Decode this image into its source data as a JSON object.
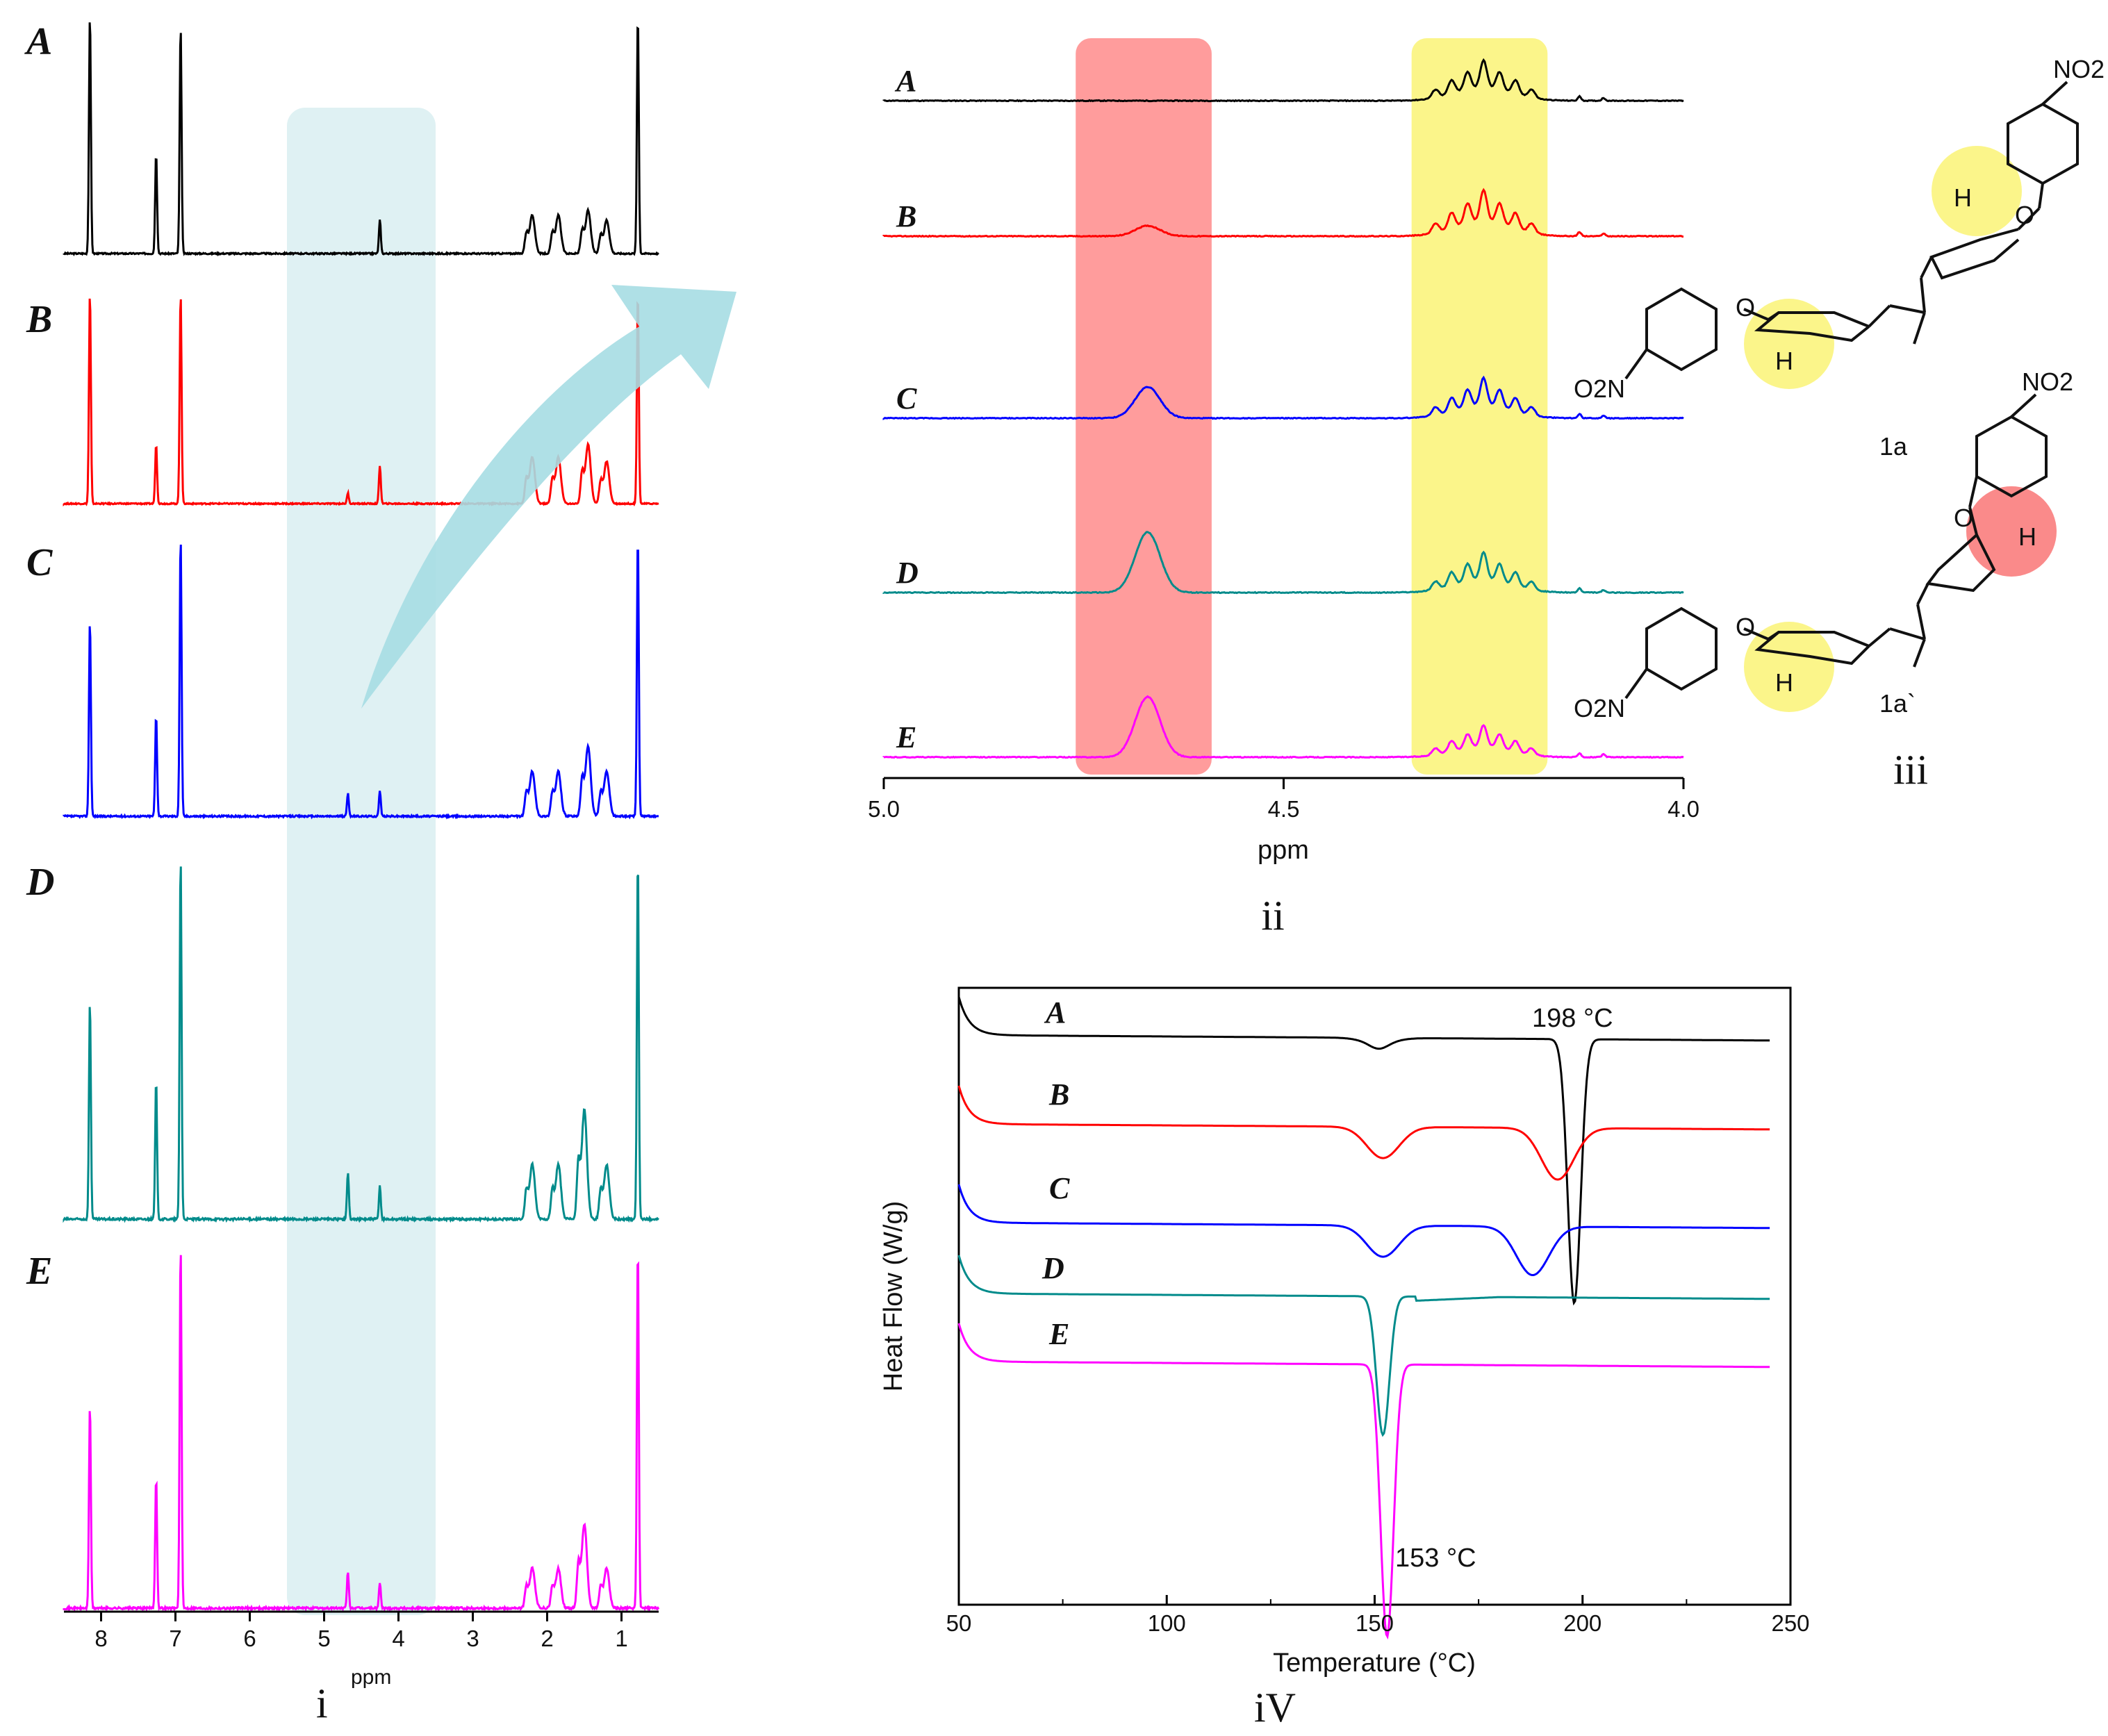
{
  "panels": {
    "i": {
      "label": "i"
    },
    "ii": {
      "label": "ii"
    },
    "iii": {
      "label": "iii"
    },
    "iv": {
      "label": "iV"
    }
  },
  "colors": {
    "A": "#000000",
    "B": "#ff0000",
    "C": "#0000ff",
    "D": "#008b8b",
    "E": "#ff00ff",
    "highlight_cyan": "#dff1f3",
    "highlight_red": "#ff9c9c",
    "highlight_yellow": "#fbf58a",
    "arrow": "#a6dde3"
  },
  "chart_data": [
    {
      "id": "i",
      "type": "line",
      "xlabel": "ppm",
      "xlim": [
        8.5,
        0.5
      ],
      "x_ticks": [
        8,
        7,
        6,
        5,
        4,
        3,
        2,
        1
      ],
      "highlight_region": [
        5.5,
        3.5
      ],
      "series": [
        {
          "name": "A",
          "peaks": [
            {
              "x": 8.15,
              "h": 1.0
            },
            {
              "x": 7.26,
              "h": 0.42
            },
            {
              "x": 6.93,
              "h": 0.95
            },
            {
              "x": 4.25,
              "h": 0.14
            },
            {
              "x": 2.2,
              "h": 0.16
            },
            {
              "x": 1.85,
              "h": 0.16
            },
            {
              "x": 1.45,
              "h": 0.18
            },
            {
              "x": 1.2,
              "h": 0.14
            },
            {
              "x": 0.78,
              "h": 1.0
            }
          ]
        },
        {
          "name": "B",
          "peaks": [
            {
              "x": 8.15,
              "h": 1.0
            },
            {
              "x": 7.26,
              "h": 0.28
            },
            {
              "x": 6.93,
              "h": 1.0
            },
            {
              "x": 4.68,
              "h": 0.05
            },
            {
              "x": 4.25,
              "h": 0.18
            },
            {
              "x": 2.2,
              "h": 0.22
            },
            {
              "x": 1.85,
              "h": 0.22
            },
            {
              "x": 1.45,
              "h": 0.28
            },
            {
              "x": 1.2,
              "h": 0.2
            },
            {
              "x": 0.78,
              "h": 1.0
            }
          ]
        },
        {
          "name": "C",
          "peaks": [
            {
              "x": 8.15,
              "h": 0.7
            },
            {
              "x": 7.26,
              "h": 0.36
            },
            {
              "x": 6.93,
              "h": 1.0
            },
            {
              "x": 4.68,
              "h": 0.08
            },
            {
              "x": 4.25,
              "h": 0.09
            },
            {
              "x": 2.2,
              "h": 0.16
            },
            {
              "x": 1.85,
              "h": 0.16
            },
            {
              "x": 1.45,
              "h": 0.25
            },
            {
              "x": 1.2,
              "h": 0.16
            },
            {
              "x": 0.78,
              "h": 1.0
            }
          ]
        },
        {
          "name": "D",
          "peaks": [
            {
              "x": 8.15,
              "h": 0.6
            },
            {
              "x": 7.26,
              "h": 0.38
            },
            {
              "x": 6.93,
              "h": 1.0
            },
            {
              "x": 4.68,
              "h": 0.13
            },
            {
              "x": 4.25,
              "h": 0.09
            },
            {
              "x": 2.2,
              "h": 0.15
            },
            {
              "x": 1.85,
              "h": 0.15
            },
            {
              "x": 1.5,
              "h": 0.3
            },
            {
              "x": 1.2,
              "h": 0.15
            },
            {
              "x": 0.78,
              "h": 1.0
            }
          ]
        },
        {
          "name": "E",
          "peaks": [
            {
              "x": 8.15,
              "h": 0.56
            },
            {
              "x": 7.26,
              "h": 0.36
            },
            {
              "x": 6.93,
              "h": 1.0
            },
            {
              "x": 4.68,
              "h": 0.1
            },
            {
              "x": 4.25,
              "h": 0.07
            },
            {
              "x": 2.2,
              "h": 0.11
            },
            {
              "x": 1.85,
              "h": 0.11
            },
            {
              "x": 1.5,
              "h": 0.23
            },
            {
              "x": 1.2,
              "h": 0.11
            },
            {
              "x": 0.78,
              "h": 1.0
            }
          ]
        }
      ]
    },
    {
      "id": "ii",
      "type": "line",
      "xlabel": "ppm",
      "xlim": [
        5.0,
        4.0
      ],
      "x_ticks": [
        "5.0",
        "4.5",
        "4.0"
      ],
      "highlight_regions": [
        {
          "range": [
            4.76,
            4.59
          ],
          "color": "red"
        },
        {
          "range": [
            4.34,
            4.17
          ],
          "color": "yellow"
        }
      ],
      "series": [
        {
          "name": "A",
          "peak_4_67": 0.0,
          "cluster_4_25": 1.0
        },
        {
          "name": "B",
          "peak_4_67": 0.25,
          "cluster_4_25": 1.15
        },
        {
          "name": "C",
          "peak_4_67": 0.75,
          "cluster_4_25": 1.0
        },
        {
          "name": "D",
          "peak_4_67": 1.45,
          "cluster_4_25": 1.0
        },
        {
          "name": "E",
          "peak_4_67": 1.45,
          "cluster_4_25": 0.8
        }
      ]
    },
    {
      "id": "iv",
      "type": "line",
      "xlabel": "Temperature (°C)",
      "ylabel": "Heat Flow (W/g)",
      "xlim": [
        50,
        250
      ],
      "x_ticks": [
        50,
        100,
        150,
        200,
        250
      ],
      "annotations": [
        {
          "text": "198 °C",
          "x": 198
        },
        {
          "text": "153 °C",
          "x": 153
        }
      ],
      "series": [
        {
          "name": "A",
          "baseline": 0.0,
          "dips": [
            {
              "x": 151,
              "depth": 0.02
            },
            {
              "x": 198,
              "depth": 1.0
            }
          ]
        },
        {
          "name": "B",
          "baseline": 1.0,
          "dips": [
            {
              "x": 152,
              "depth": 0.2
            },
            {
              "x": 194,
              "depth": 0.33
            }
          ]
        },
        {
          "name": "C",
          "baseline": 1.9,
          "dips": [
            {
              "x": 152,
              "depth": 0.18
            },
            {
              "x": 188,
              "depth": 0.28
            }
          ]
        },
        {
          "name": "D",
          "baseline": 2.65,
          "dips": [
            {
              "x": 152,
              "depth": 0.95
            }
          ]
        },
        {
          "name": "E",
          "baseline": 3.25,
          "dips": [
            {
              "x": 153,
              "depth": 1.4
            }
          ]
        }
      ]
    }
  ],
  "structure": {
    "compound_1": {
      "label": "1a",
      "groups": [
        "NO2",
        "O2N",
        "O",
        "O",
        "H",
        "H"
      ]
    },
    "compound_2": {
      "label": "1a`",
      "groups": [
        "NO2",
        "O2N",
        "O",
        "O",
        "H",
        "H"
      ]
    }
  }
}
